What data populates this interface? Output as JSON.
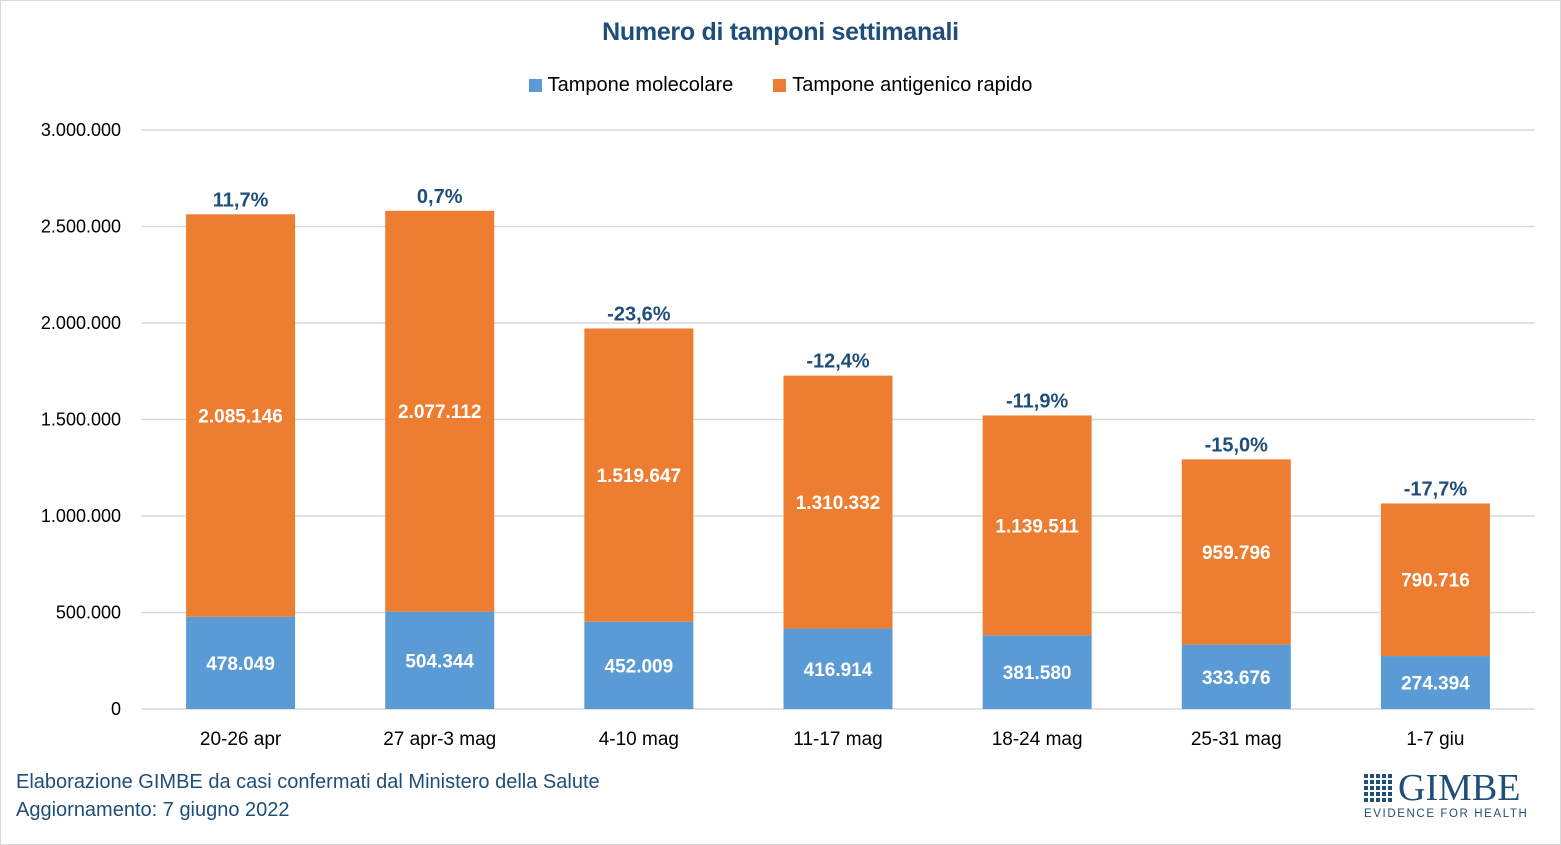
{
  "chart_data": {
    "type": "bar",
    "stacked": true,
    "title": "Numero di tamponi settimanali",
    "xlabel": "",
    "ylabel": "",
    "ylim": [
      0,
      3000000
    ],
    "yticks": [
      0,
      500000,
      1000000,
      1500000,
      2000000,
      2500000,
      3000000
    ],
    "ytick_labels": [
      "0",
      "500.000",
      "1.000.000",
      "1.500.000",
      "2.000.000",
      "2.500.000",
      "3.000.000"
    ],
    "grid": true,
    "legend_position": "top-center",
    "categories": [
      "20-26 apr",
      "27 apr-3 mag",
      "4-10 mag",
      "11-17 mag",
      "18-24 mag",
      "25-31 mag",
      "1-7 giu"
    ],
    "series": [
      {
        "name": "Tampone molecolare",
        "color": "#5b9bd5",
        "values": [
          478049,
          504344,
          452009,
          416914,
          381580,
          333676,
          274394
        ],
        "labels": [
          "478.049",
          "504.344",
          "452.009",
          "416.914",
          "381.580",
          "333.676",
          "274.394"
        ]
      },
      {
        "name": "Tampone antigenico rapido",
        "color": "#ed7d31",
        "values": [
          2085146,
          2077112,
          1519647,
          1310332,
          1139511,
          959796,
          790716
        ],
        "labels": [
          "2.085.146",
          "2.077.112",
          "1.519.647",
          "1.310.332",
          "1.139.511",
          "959.796",
          "790.716"
        ]
      }
    ],
    "annotations": {
      "weekly_change_percent": [
        11.7,
        0.7,
        -23.6,
        -12.4,
        -11.9,
        -15.0,
        -17.7
      ],
      "labels": [
        "11,7%",
        "0,7%",
        "-23,6%",
        "-12,4%",
        "-11,9%",
        "-15,0%",
        "-17,7%"
      ],
      "color": "#1f4e79"
    }
  },
  "footer": {
    "source": "Elaborazione GIMBE da casi confermati dal Ministero della Salute",
    "updated": "Aggiornamento: 7 giugno 2022"
  },
  "logo": {
    "name": "GIMBE",
    "tagline": "EVIDENCE FOR HEALTH"
  }
}
